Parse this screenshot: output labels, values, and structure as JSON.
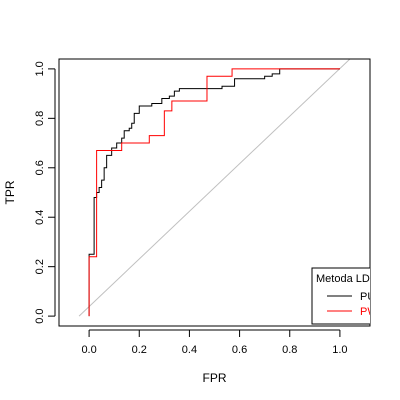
{
  "chart_data": {
    "type": "line",
    "title": "",
    "xlabel": "FPR",
    "ylabel": "TPR",
    "xlim": [
      -0.12,
      1.12
    ],
    "ylim": [
      -0.04,
      1.04
    ],
    "xticks": [
      0.0,
      0.2,
      0.4,
      0.6,
      0.8,
      1.0
    ],
    "xtick_labels": [
      "0.0",
      "0.2",
      "0.4",
      "0.6",
      "0.8",
      "1.0"
    ],
    "yticks": [
      0.0,
      0.2,
      0.4,
      0.6,
      0.8,
      1.0
    ],
    "ytick_labels": [
      "0.0",
      "0.2",
      "0.4",
      "0.6",
      "0.8",
      "1.0"
    ],
    "grid": false,
    "legend": {
      "title": "Metoda LD",
      "placement": "bottom-right",
      "entries": [
        "PU",
        "PW"
      ]
    },
    "reference_line": {
      "from": [
        -0.04,
        0.0
      ],
      "to": [
        1.04,
        1.04
      ],
      "color": "#c0c0c0"
    },
    "series": [
      {
        "name": "PU",
        "color": "#000000",
        "points": [
          [
            0.0,
            0.0
          ],
          [
            0.0,
            0.25
          ],
          [
            0.02,
            0.25
          ],
          [
            0.02,
            0.48
          ],
          [
            0.03,
            0.48
          ],
          [
            0.03,
            0.5
          ],
          [
            0.04,
            0.5
          ],
          [
            0.04,
            0.52
          ],
          [
            0.05,
            0.52
          ],
          [
            0.05,
            0.55
          ],
          [
            0.06,
            0.55
          ],
          [
            0.06,
            0.6
          ],
          [
            0.07,
            0.6
          ],
          [
            0.07,
            0.65
          ],
          [
            0.09,
            0.65
          ],
          [
            0.09,
            0.68
          ],
          [
            0.11,
            0.68
          ],
          [
            0.11,
            0.7
          ],
          [
            0.13,
            0.7
          ],
          [
            0.13,
            0.72
          ],
          [
            0.14,
            0.72
          ],
          [
            0.14,
            0.75
          ],
          [
            0.16,
            0.75
          ],
          [
            0.16,
            0.76
          ],
          [
            0.17,
            0.76
          ],
          [
            0.17,
            0.78
          ],
          [
            0.18,
            0.78
          ],
          [
            0.18,
            0.82
          ],
          [
            0.2,
            0.82
          ],
          [
            0.2,
            0.85
          ],
          [
            0.25,
            0.85
          ],
          [
            0.25,
            0.86
          ],
          [
            0.29,
            0.86
          ],
          [
            0.29,
            0.88
          ],
          [
            0.32,
            0.88
          ],
          [
            0.32,
            0.89
          ],
          [
            0.34,
            0.89
          ],
          [
            0.34,
            0.91
          ],
          [
            0.36,
            0.91
          ],
          [
            0.36,
            0.92
          ],
          [
            0.53,
            0.92
          ],
          [
            0.53,
            0.93
          ],
          [
            0.58,
            0.93
          ],
          [
            0.58,
            0.96
          ],
          [
            0.7,
            0.96
          ],
          [
            0.7,
            0.97
          ],
          [
            0.73,
            0.97
          ],
          [
            0.73,
            0.98
          ],
          [
            0.76,
            0.98
          ],
          [
            0.76,
            1.0
          ],
          [
            1.0,
            1.0
          ]
        ]
      },
      {
        "name": "PW",
        "color": "#ff0000",
        "points": [
          [
            0.0,
            0.0
          ],
          [
            0.0,
            0.24
          ],
          [
            0.03,
            0.24
          ],
          [
            0.03,
            0.67
          ],
          [
            0.13,
            0.67
          ],
          [
            0.13,
            0.7
          ],
          [
            0.24,
            0.7
          ],
          [
            0.24,
            0.73
          ],
          [
            0.3,
            0.73
          ],
          [
            0.3,
            0.83
          ],
          [
            0.33,
            0.83
          ],
          [
            0.33,
            0.87
          ],
          [
            0.47,
            0.87
          ],
          [
            0.47,
            0.97
          ],
          [
            0.57,
            0.97
          ],
          [
            0.57,
            1.0
          ],
          [
            1.0,
            1.0
          ]
        ]
      }
    ]
  }
}
